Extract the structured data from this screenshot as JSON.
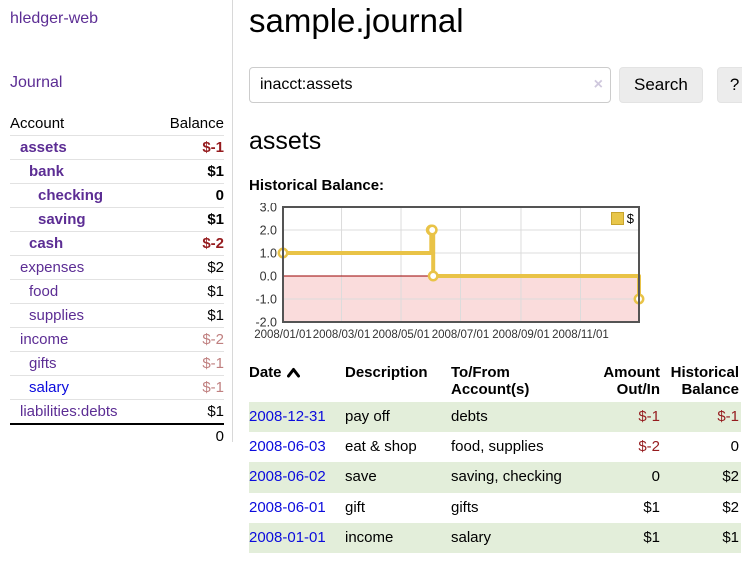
{
  "app": {
    "brand": "hledger-web"
  },
  "sidebar": {
    "journal_link": "Journal",
    "accounts": {
      "header": {
        "account": "Account",
        "balance": "Balance"
      },
      "rows": [
        {
          "name": "assets",
          "balance": "$-1"
        },
        {
          "name": "bank",
          "balance": "$1"
        },
        {
          "name": "checking",
          "balance": "0"
        },
        {
          "name": "saving",
          "balance": "$1"
        },
        {
          "name": "cash",
          "balance": "$-2"
        },
        {
          "name": "expenses",
          "balance": "$2"
        },
        {
          "name": "food",
          "balance": "$1"
        },
        {
          "name": "supplies",
          "balance": "$1"
        },
        {
          "name": "income",
          "balance": "$-2"
        },
        {
          "name": "gifts",
          "balance": "$-1"
        },
        {
          "name": "salary",
          "balance": "$-1"
        },
        {
          "name": "liabilities:debts",
          "balance": "$1"
        }
      ],
      "total": "0"
    }
  },
  "header": {
    "title": "sample.journal"
  },
  "search": {
    "value": "inacct:assets",
    "clear_label": "×",
    "button": "Search",
    "help_button": "?"
  },
  "content": {
    "account_heading": "assets",
    "chart_title": "Historical Balance:"
  },
  "chart_data": {
    "type": "line",
    "step": true,
    "title": "Historical Balance",
    "series": [
      {
        "name": "$",
        "color": "#e9c347",
        "points": [
          {
            "x": "2008-01-01",
            "y": 1
          },
          {
            "x": "2008-06-01",
            "y": 2
          },
          {
            "x": "2008-06-02",
            "y": 2
          },
          {
            "x": "2008-06-03",
            "y": 0
          },
          {
            "x": "2008-12-31",
            "y": -1
          }
        ]
      }
    ],
    "ylim": [
      -2,
      3
    ],
    "yticks": [
      "3.0",
      "2.0",
      "1.0",
      "0.0",
      "-1.0",
      "-2.0"
    ],
    "xticks": [
      "2008/01/01",
      "2008/03/01",
      "2008/05/01",
      "2008/07/01",
      "2008/09/01",
      "2008/11/01"
    ],
    "xrange": [
      "2008-01-01",
      "2008-12-31"
    ],
    "legend_position": "top-right",
    "grid": true,
    "colors": {
      "negative_fill": "#fadcdc",
      "zero_line": "#9a0000",
      "grid": "#dcdcdc",
      "border": "#545454"
    }
  },
  "register": {
    "columns": {
      "date": "Date",
      "description": "Description",
      "accounts": "To/From Account(s)",
      "amount": "Amount Out/In",
      "balance": "Historical Balance"
    },
    "rows": [
      {
        "date": "2008-12-31",
        "description": "pay off",
        "accounts": "debts",
        "amount": "$-1",
        "balance": "$-1"
      },
      {
        "date": "2008-06-03",
        "description": "eat & shop",
        "accounts": "food, supplies",
        "amount": "$-2",
        "balance": "0"
      },
      {
        "date": "2008-06-02",
        "description": "save",
        "accounts": "saving, checking",
        "amount": "0",
        "balance": "$2"
      },
      {
        "date": "2008-06-01",
        "description": "gift",
        "accounts": "gifts",
        "amount": "$1",
        "balance": "$2"
      },
      {
        "date": "2008-01-01",
        "description": "income",
        "accounts": "salary",
        "amount": "$1",
        "balance": "$1"
      }
    ]
  }
}
